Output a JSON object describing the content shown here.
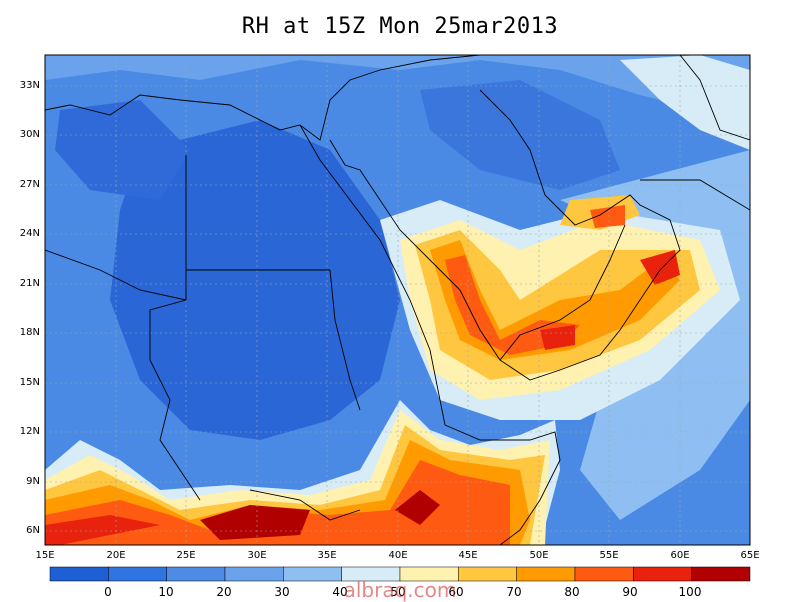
{
  "title": "RH at 15Z Mon 25mar2013",
  "watermark": "albraq.com",
  "y_ticks": [
    "33N",
    "30N",
    "27N",
    "24N",
    "21N",
    "18N",
    "15N",
    "12N",
    "9N",
    "6N"
  ],
  "x_ticks": [
    "15E",
    "20E",
    "25E",
    "30E",
    "35E",
    "40E",
    "45E",
    "50E",
    "55E",
    "60E",
    "65E"
  ],
  "colorbar": {
    "labels": [
      "0",
      "10",
      "20",
      "30",
      "40",
      "50",
      "60",
      "70",
      "80",
      "90",
      "100"
    ],
    "colors": [
      "#1f5fd6",
      "#2f74e0",
      "#4d8be6",
      "#6aa3ec",
      "#8fbef3",
      "#d8ecf8",
      "#fff2b0",
      "#ffc640",
      "#ff9a00",
      "#ff5a12",
      "#e8220c",
      "#b00000"
    ]
  },
  "field_colors": {
    "base": "#3f7fe0",
    "land_fill": "#2f69d6",
    "light": "#8fbef3",
    "pale": "#d8ecf8",
    "cream": "#fff2b0",
    "yellow": "#ffc640",
    "orange": "#ff9a00",
    "red": "#ff5a12",
    "darkred": "#b00000"
  }
}
